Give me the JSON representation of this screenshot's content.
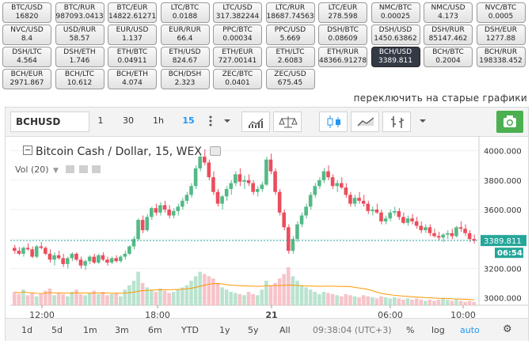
{
  "pairs": [
    {
      "name": "BTC/USD",
      "value": "16820"
    },
    {
      "name": "BTC/RUR",
      "value": "987093.0413"
    },
    {
      "name": "BTC/EUR",
      "value": "14822.61271"
    },
    {
      "name": "LTC/BTC",
      "value": "0.0188"
    },
    {
      "name": "LTC/USD",
      "value": "317.382244"
    },
    {
      "name": "LTC/RUR",
      "value": "18687.74563"
    },
    {
      "name": "LTC/EUR",
      "value": "278.598"
    },
    {
      "name": "NMC/BTC",
      "value": "0.00025"
    },
    {
      "name": "NMC/USD",
      "value": "4.173"
    },
    {
      "name": "NVC/BTC",
      "value": "0.0005"
    },
    {
      "name": "NVC/USD",
      "value": "8.4"
    },
    {
      "name": "USD/RUR",
      "value": "58.57"
    },
    {
      "name": "EUR/USD",
      "value": "1.137"
    },
    {
      "name": "EUR/RUR",
      "value": "66.4"
    },
    {
      "name": "PPC/BTC",
      "value": "0.00034"
    },
    {
      "name": "PPC/USD",
      "value": "5.669"
    },
    {
      "name": "DSH/BTC",
      "value": "0.08609"
    },
    {
      "name": "DSH/USD",
      "value": "1450.63862"
    },
    {
      "name": "DSH/RUR",
      "value": "85147.462"
    },
    {
      "name": "DSH/EUR",
      "value": "1277.88"
    },
    {
      "name": "DSH/LTC",
      "value": "4.564"
    },
    {
      "name": "DSH/ETH",
      "value": "1.746"
    },
    {
      "name": "ETH/BTC",
      "value": "0.04911"
    },
    {
      "name": "ETH/USD",
      "value": "824.67"
    },
    {
      "name": "ETH/EUR",
      "value": "727.00141"
    },
    {
      "name": "ETH/LTC",
      "value": "2.6083"
    },
    {
      "name": "ETH/RUR",
      "value": "48366.91278"
    },
    {
      "name": "BCH/USD",
      "value": "3389.811",
      "active": true
    },
    {
      "name": "BCH/BTC",
      "value": "0.2004"
    },
    {
      "name": "BCH/RUR",
      "value": "198338.452"
    },
    {
      "name": "BCH/EUR",
      "value": "2971.867"
    },
    {
      "name": "BCH/LTC",
      "value": "10.612"
    },
    {
      "name": "BCH/ETH",
      "value": "4.074"
    },
    {
      "name": "BCH/DSH",
      "value": "2.323"
    },
    {
      "name": "ZEC/BTC",
      "value": "0.0401"
    },
    {
      "name": "ZEC/USD",
      "value": "675.45"
    }
  ],
  "switch_link": "переключить на старые графики",
  "toolbar": {
    "symbol": "BCHUSD",
    "intervals": [
      "1",
      "30",
      "1h",
      "15"
    ],
    "selected_interval": "15",
    "icons": [
      "more-vert-icon",
      "chevron-down-icon",
      "bar-chart-icon",
      "scales-icon",
      "candles-icon",
      "line-chart-icon",
      "ohlc-bars-icon",
      "chevron-down-icon",
      "camera-icon"
    ]
  },
  "legend": {
    "title": "Bitcoin Cash / Dollar, 15, WEX",
    "vol": "Vol (20)"
  },
  "chart_data": {
    "type": "candlestick",
    "ylim": [
      2950,
      4100
    ],
    "y_ticks": [
      "4000.000",
      "3800.000",
      "3600.000",
      "3400.000",
      "3200.000",
      "3000.000"
    ],
    "x_ticks": [
      "12:00",
      "18:00",
      "21",
      "06:00",
      "10:00"
    ],
    "last_price": "3389.811",
    "countdown": "06:54",
    "colors": {
      "up": "#53b987",
      "down": "#eb4d5c",
      "ma": "#ff9800",
      "last": "#26a69a"
    },
    "candles": [
      [
        3340,
        3360,
        3300,
        3320
      ],
      [
        3320,
        3345,
        3290,
        3300
      ],
      [
        3300,
        3350,
        3280,
        3340
      ],
      [
        3340,
        3370,
        3320,
        3330
      ],
      [
        3330,
        3350,
        3270,
        3280
      ],
      [
        3280,
        3360,
        3270,
        3350
      ],
      [
        3350,
        3380,
        3330,
        3340
      ],
      [
        3340,
        3350,
        3290,
        3300
      ],
      [
        3300,
        3330,
        3240,
        3260
      ],
      [
        3260,
        3310,
        3220,
        3290
      ],
      [
        3290,
        3320,
        3260,
        3270
      ],
      [
        3270,
        3300,
        3210,
        3230
      ],
      [
        3230,
        3280,
        3200,
        3270
      ],
      [
        3270,
        3310,
        3250,
        3300
      ],
      [
        3300,
        3310,
        3250,
        3260
      ],
      [
        3260,
        3280,
        3200,
        3220
      ],
      [
        3220,
        3260,
        3190,
        3250
      ],
      [
        3250,
        3290,
        3230,
        3280
      ],
      [
        3280,
        3300,
        3230,
        3240
      ],
      [
        3240,
        3300,
        3230,
        3290
      ],
      [
        3290,
        3310,
        3250,
        3260
      ],
      [
        3260,
        3280,
        3220,
        3240
      ],
      [
        3240,
        3280,
        3230,
        3270
      ],
      [
        3270,
        3290,
        3240,
        3250
      ],
      [
        3250,
        3290,
        3240,
        3280
      ],
      [
        3280,
        3320,
        3260,
        3300
      ],
      [
        3300,
        3360,
        3290,
        3350
      ],
      [
        3350,
        3420,
        3330,
        3400
      ],
      [
        3400,
        3540,
        3390,
        3530
      ],
      [
        3530,
        3560,
        3440,
        3460
      ],
      [
        3460,
        3570,
        3450,
        3550
      ],
      [
        3550,
        3620,
        3530,
        3610
      ],
      [
        3610,
        3640,
        3560,
        3580
      ],
      [
        3580,
        3650,
        3560,
        3630
      ],
      [
        3630,
        3660,
        3580,
        3600
      ],
      [
        3600,
        3630,
        3540,
        3560
      ],
      [
        3560,
        3610,
        3540,
        3590
      ],
      [
        3590,
        3640,
        3560,
        3620
      ],
      [
        3620,
        3680,
        3600,
        3660
      ],
      [
        3660,
        3720,
        3640,
        3700
      ],
      [
        3700,
        3780,
        3680,
        3760
      ],
      [
        3760,
        3900,
        3740,
        3880
      ],
      [
        3880,
        3980,
        3860,
        3960
      ],
      [
        3960,
        4010,
        3900,
        3920
      ],
      [
        3920,
        3940,
        3800,
        3820
      ],
      [
        3820,
        3860,
        3700,
        3720
      ],
      [
        3720,
        3740,
        3620,
        3640
      ],
      [
        3640,
        3700,
        3600,
        3690
      ],
      [
        3690,
        3760,
        3660,
        3740
      ],
      [
        3740,
        3800,
        3700,
        3780
      ],
      [
        3780,
        3860,
        3760,
        3840
      ],
      [
        3840,
        3880,
        3760,
        3790
      ],
      [
        3790,
        3830,
        3740,
        3800
      ],
      [
        3800,
        3840,
        3760,
        3780
      ],
      [
        3780,
        3800,
        3700,
        3720
      ],
      [
        3720,
        3760,
        3690,
        3740
      ],
      [
        3740,
        3790,
        3720,
        3770
      ],
      [
        3770,
        3960,
        3760,
        3940
      ],
      [
        3940,
        3980,
        3840,
        3860
      ],
      [
        3860,
        3880,
        3700,
        3720
      ],
      [
        3720,
        3740,
        3560,
        3580
      ],
      [
        3580,
        3600,
        3460,
        3480
      ],
      [
        3480,
        3500,
        3300,
        3320
      ],
      [
        3320,
        3420,
        3300,
        3400
      ],
      [
        3400,
        3520,
        3380,
        3500
      ],
      [
        3500,
        3580,
        3480,
        3560
      ],
      [
        3560,
        3640,
        3540,
        3620
      ],
      [
        3620,
        3720,
        3600,
        3700
      ],
      [
        3700,
        3780,
        3680,
        3760
      ],
      [
        3760,
        3820,
        3740,
        3800
      ],
      [
        3800,
        3880,
        3780,
        3860
      ],
      [
        3860,
        3900,
        3800,
        3820
      ],
      [
        3820,
        3840,
        3740,
        3760
      ],
      [
        3760,
        3800,
        3720,
        3780
      ],
      [
        3780,
        3820,
        3740,
        3750
      ],
      [
        3750,
        3780,
        3680,
        3700
      ],
      [
        3700,
        3720,
        3620,
        3640
      ],
      [
        3640,
        3700,
        3620,
        3680
      ],
      [
        3680,
        3720,
        3640,
        3660
      ],
      [
        3660,
        3700,
        3620,
        3640
      ],
      [
        3640,
        3660,
        3570,
        3590
      ],
      [
        3590,
        3620,
        3560,
        3600
      ],
      [
        3600,
        3640,
        3570,
        3580
      ],
      [
        3580,
        3600,
        3500,
        3520
      ],
      [
        3520,
        3560,
        3500,
        3540
      ],
      [
        3540,
        3600,
        3520,
        3580
      ],
      [
        3580,
        3620,
        3560,
        3590
      ],
      [
        3590,
        3610,
        3530,
        3550
      ],
      [
        3550,
        3580,
        3500,
        3510
      ],
      [
        3510,
        3560,
        3490,
        3540
      ],
      [
        3540,
        3570,
        3500,
        3520
      ],
      [
        3520,
        3550,
        3470,
        3490
      ],
      [
        3490,
        3520,
        3440,
        3460
      ],
      [
        3460,
        3500,
        3440,
        3480
      ],
      [
        3480,
        3500,
        3420,
        3440
      ],
      [
        3440,
        3470,
        3410,
        3420
      ],
      [
        3420,
        3450,
        3390,
        3410
      ],
      [
        3410,
        3440,
        3380,
        3430
      ],
      [
        3430,
        3460,
        3400,
        3440
      ],
      [
        3440,
        3470,
        3400,
        3420
      ],
      [
        3420,
        3490,
        3410,
        3480
      ],
      [
        3480,
        3520,
        3450,
        3470
      ],
      [
        3470,
        3500,
        3420,
        3440
      ],
      [
        3440,
        3460,
        3380,
        3400
      ],
      [
        3400,
        3430,
        3370,
        3389.811
      ]
    ],
    "volumes": [
      12,
      10,
      14,
      9,
      11,
      8,
      10,
      13,
      15,
      9,
      11,
      10,
      8,
      12,
      14,
      10,
      9,
      11,
      13,
      10,
      12,
      9,
      10,
      11,
      8,
      14,
      18,
      22,
      30,
      20,
      16,
      14,
      12,
      15,
      13,
      11,
      12,
      14,
      16,
      18,
      22,
      26,
      30,
      28,
      26,
      24,
      20,
      16,
      14,
      12,
      11,
      10,
      9,
      12,
      10,
      9,
      14,
      22,
      18,
      20,
      24,
      28,
      34,
      26,
      22,
      18,
      16,
      14,
      12,
      10,
      12,
      11,
      10,
      9,
      8,
      10,
      9,
      8,
      7,
      9,
      8,
      7,
      6,
      8,
      7,
      6,
      7,
      6,
      5,
      6,
      5,
      6,
      5,
      4,
      5,
      4,
      5,
      6,
      5,
      4,
      5,
      4,
      3,
      4,
      3
    ]
  },
  "bottombar": {
    "ranges": [
      "1d",
      "5d",
      "1m",
      "3m",
      "6m",
      "YTD",
      "1y",
      "5y",
      "All"
    ],
    "clock": "09:38:04 (UTC+3)",
    "options": [
      "%",
      "log",
      "auto"
    ]
  }
}
